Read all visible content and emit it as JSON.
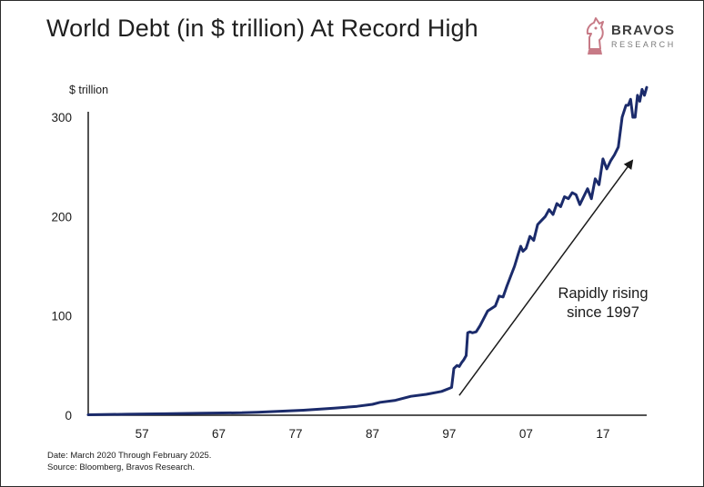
{
  "header": {
    "title": "World Debt (in $ trillion) At Record High"
  },
  "brand": {
    "name": "BRAVOS",
    "sub": "RESEARCH",
    "color": "#c77a86"
  },
  "footer": {
    "date_note": "Date: March 2020 Through February 2025.",
    "source_note": "Source: Bloomberg, Bravos Research."
  },
  "chart_data": {
    "type": "line",
    "title": "World Debt (in $ trillion) At Record High",
    "ylabel": "$ trillion",
    "xlabel": "",
    "xlim": [
      1950,
      2022.7
    ],
    "ylim": [
      0,
      300
    ],
    "x_ticks": [
      57,
      67,
      77,
      87,
      97,
      7,
      17
    ],
    "y_ticks": [
      0,
      100,
      200,
      300
    ],
    "grid": false,
    "line_color": "#1b2b6b",
    "annotation": {
      "text_lines": [
        "Rapidly rising",
        "since 1997"
      ],
      "arrow_from": [
        1998.3,
        20
      ],
      "arrow_to": [
        2020.8,
        256
      ]
    },
    "series": [
      {
        "x": [
          1950,
          1955,
          1960,
          1965,
          1970,
          1972,
          1975,
          1978,
          1980,
          1982,
          1985,
          1987,
          1988,
          1990,
          1992,
          1994,
          1996,
          1997,
          1997.3,
          1997.6,
          1998,
          1998.3,
          1998.6,
          1998.9,
          1999.2,
          1999.4,
          1999.7,
          2000,
          2000.5,
          2001,
          2002,
          2003,
          2003.5,
          2004,
          2004.5,
          2005,
          2005.5,
          2006,
          2006.3,
          2006.6,
          2007,
          2007.5,
          2008,
          2008.5,
          2009,
          2009.5,
          2010,
          2010.5,
          2011,
          2011.5,
          2012,
          2012.5,
          2013,
          2013.5,
          2014,
          2014.5,
          2015,
          2015.5,
          2016,
          2016.5,
          2017,
          2017.5,
          2018,
          2018.5,
          2019,
          2019.5,
          2020,
          2020.3,
          2020.6,
          2020.9,
          2021.2,
          2021.5,
          2021.8,
          2022.1,
          2022.4,
          2022.7
        ],
        "y": [
          0.5,
          1,
          1.5,
          2,
          2.5,
          3,
          4,
          5,
          6,
          7,
          9,
          11,
          13,
          15,
          19,
          21,
          24,
          27,
          28,
          47,
          50,
          49,
          53,
          56,
          60,
          83,
          84,
          83,
          84,
          90,
          105,
          110,
          120,
          119,
          130,
          140,
          150,
          163,
          170,
          165,
          168,
          180,
          176,
          192,
          196,
          200,
          207,
          202,
          213,
          210,
          220,
          218,
          224,
          222,
          212,
          220,
          228,
          218,
          238,
          232,
          258,
          248,
          256,
          262,
          270,
          300,
          312,
          312,
          318,
          300,
          300,
          322,
          316,
          328,
          322,
          330
        ]
      }
    ]
  }
}
